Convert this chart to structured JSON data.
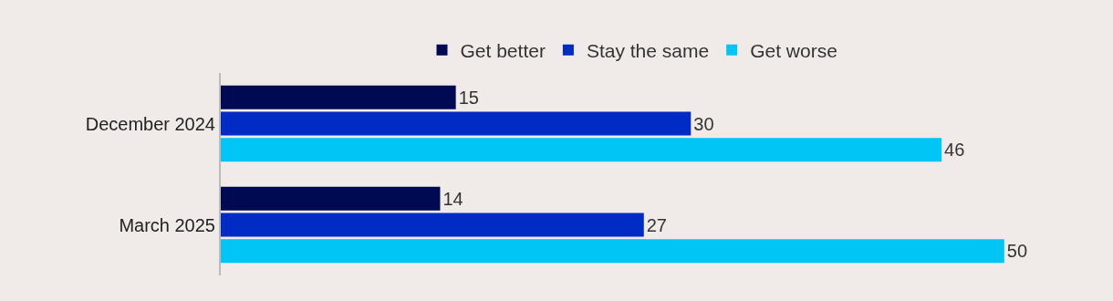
{
  "chart_data": {
    "type": "bar",
    "orientation": "horizontal",
    "categories": [
      "December 2024",
      "March 2025"
    ],
    "series": [
      {
        "name": "Get better",
        "color": "#000a52",
        "values": [
          15,
          14
        ]
      },
      {
        "name": "Stay the same",
        "color": "#002bc4",
        "values": [
          30,
          27
        ]
      },
      {
        "name": "Get worse",
        "color": "#00c5f5",
        "values": [
          46,
          50
        ]
      }
    ],
    "data_labels": true,
    "legend": "top"
  }
}
